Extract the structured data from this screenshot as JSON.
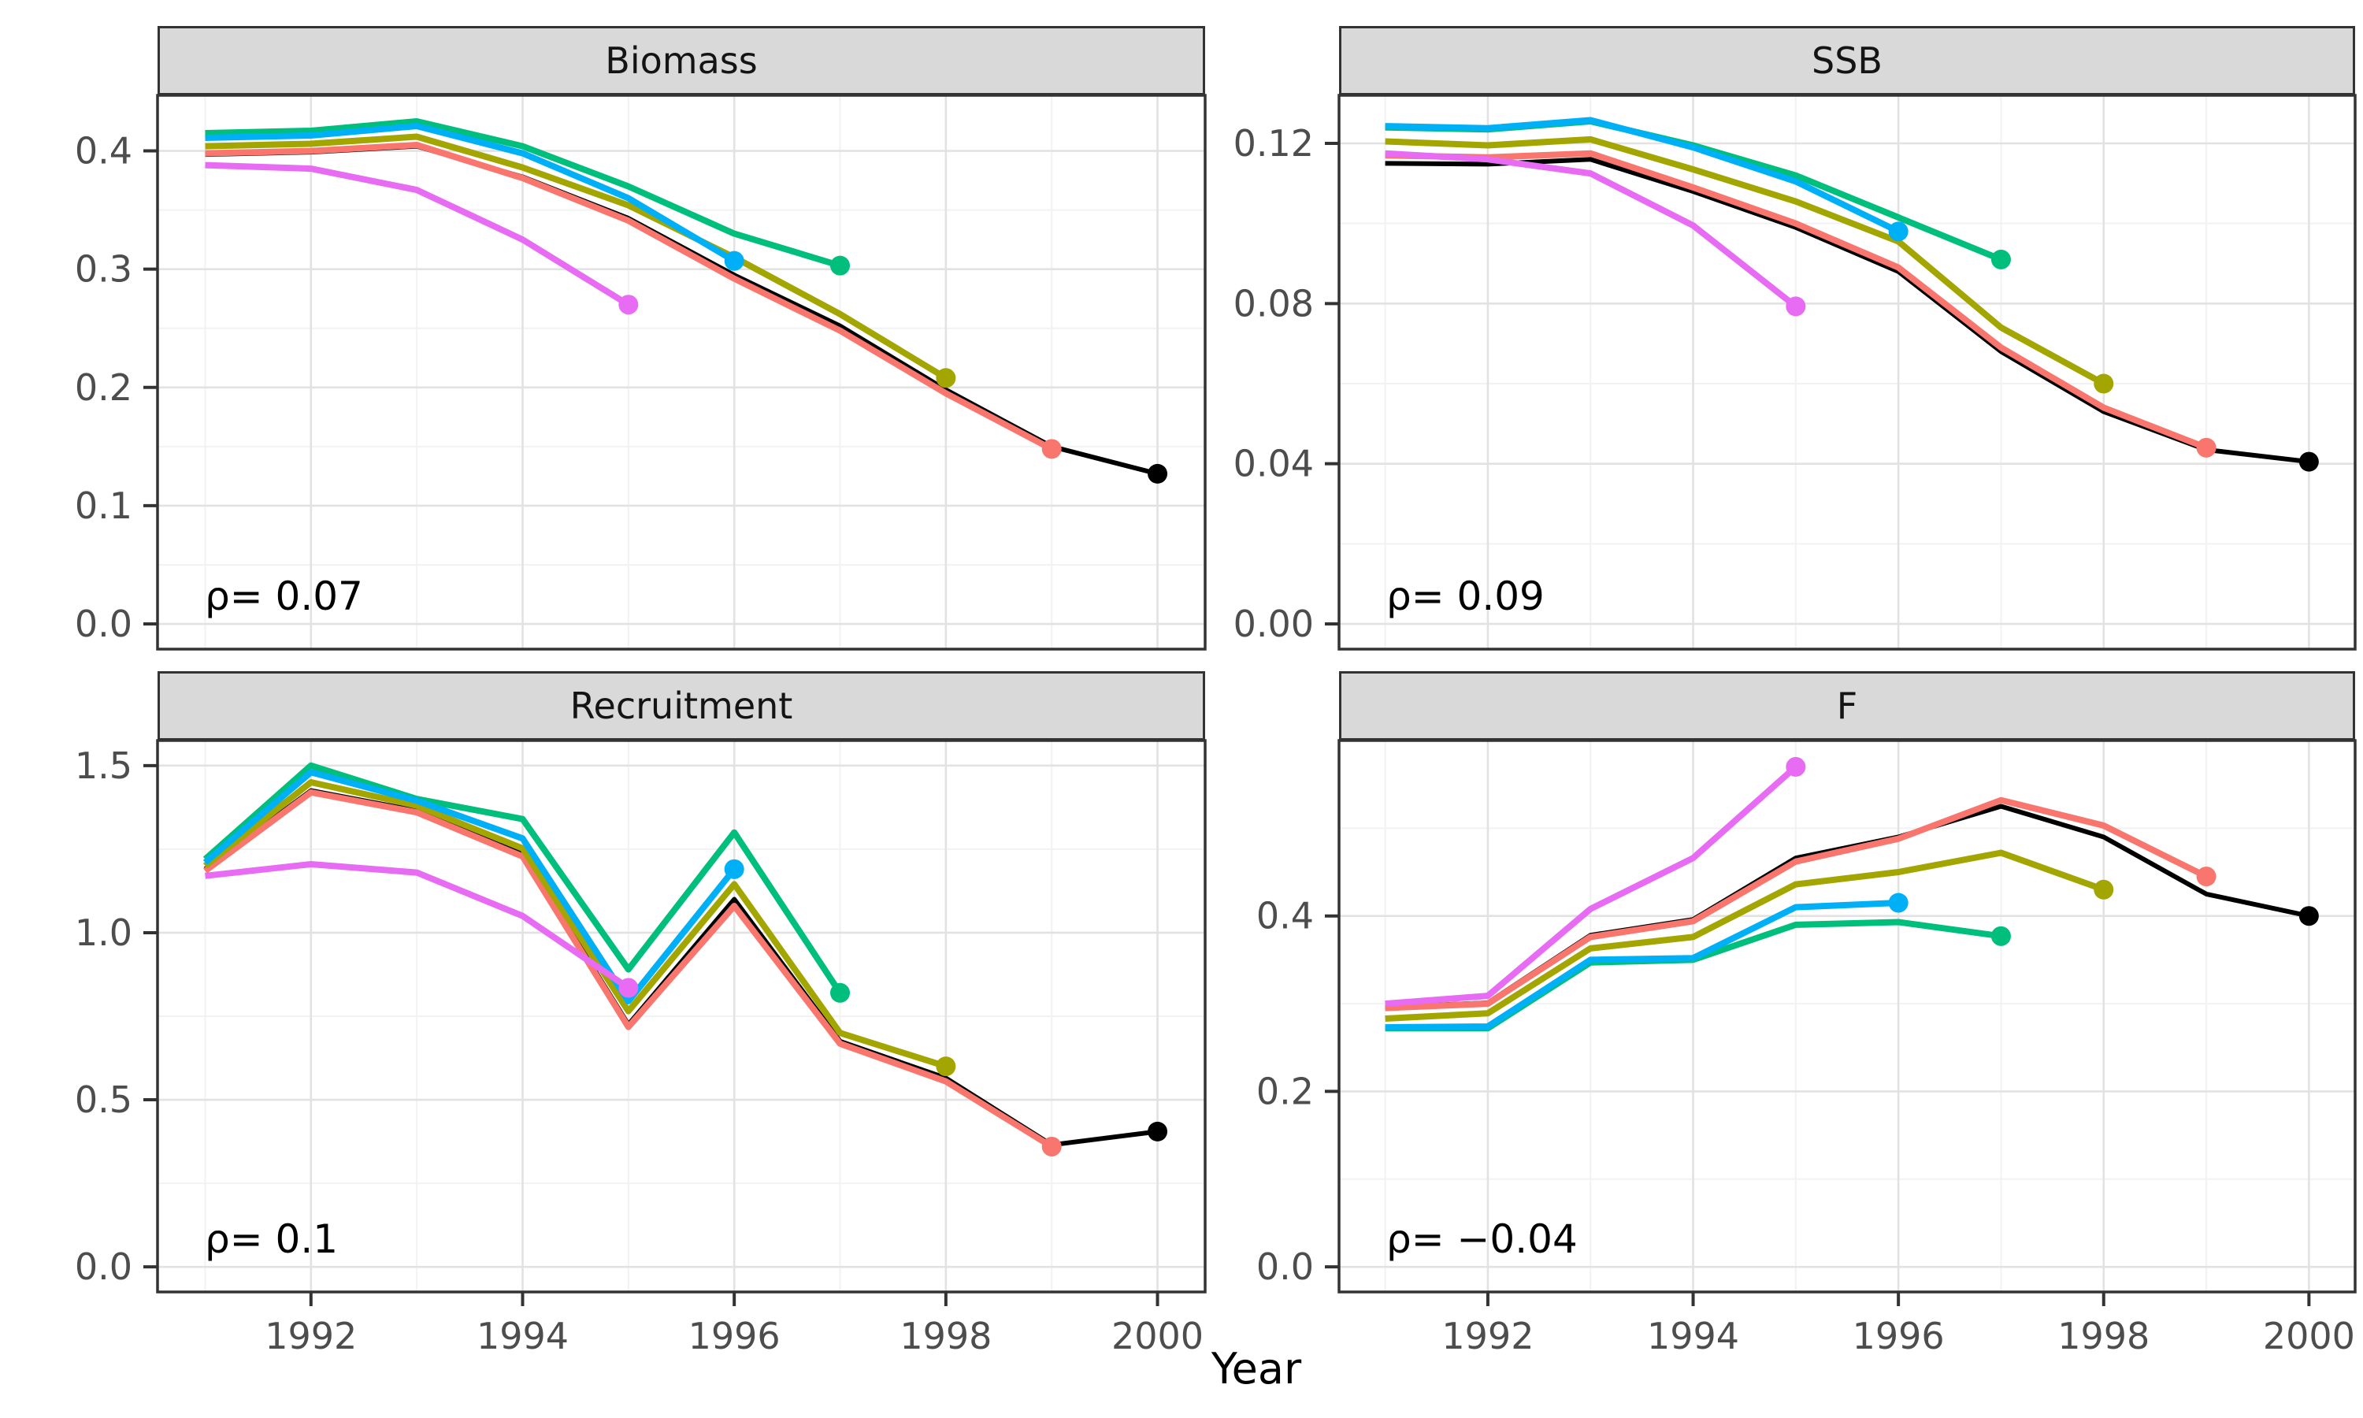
{
  "ui": {
    "x_axis_title": "Year",
    "panels": [
      {
        "title": "Biomass",
        "rho_label": "ρ= 0.07"
      },
      {
        "title": "SSB",
        "rho_label": "ρ= 0.09"
      },
      {
        "title": "Recruitment",
        "rho_label": "ρ= 0.1"
      },
      {
        "title": "F",
        "rho_label": "ρ= −0.04"
      }
    ]
  },
  "colors": {
    "base": "#000000",
    "peel_1999": "#F8766D",
    "peel_1998": "#A3A500",
    "peel_1997": "#00BF7D",
    "peel_1996": "#00B0F6",
    "peel_1995": "#E76BF3",
    "grid_major": "#E2E2E2",
    "grid_minor": "#F2F2F2",
    "strip_fill": "#D9D9D9",
    "panel_border": "#333333",
    "axis_text": "#4D4D4D"
  },
  "chart_data": [
    {
      "type": "line",
      "title": "Biomass",
      "rho": 0.07,
      "xlabel": "Year",
      "ylabel": "",
      "x_domain": [
        1990.55,
        2000.45
      ],
      "x_ticks": [
        1992,
        1994,
        1996,
        1998,
        2000
      ],
      "x_tick_labels": [
        "1992",
        "1994",
        "1996",
        "1998",
        "2000"
      ],
      "x_minor": [
        1991,
        1993,
        1995,
        1997,
        1999
      ],
      "y_domain": [
        -0.0213,
        0.447
      ],
      "y_ticks": [
        0.0,
        0.1,
        0.2,
        0.3,
        0.4
      ],
      "y_tick_labels": [
        "0.0",
        "0.1",
        "0.2",
        "0.3",
        "0.4"
      ],
      "y_minor": [
        0.05,
        0.15,
        0.25,
        0.35
      ],
      "series": [
        {
          "name": "base-2000",
          "color": "#000000",
          "width": 6,
          "start_year": 1991,
          "end_year": 2000,
          "values": [
            0.397,
            0.399,
            0.404,
            0.378,
            0.343,
            0.295,
            0.252,
            0.198,
            0.15,
            0.127
          ]
        },
        {
          "name": "peel-1999",
          "color": "#F8766D",
          "width": 8,
          "start_year": 1991,
          "end_year": 1999,
          "values": [
            0.398,
            0.4,
            0.405,
            0.377,
            0.341,
            0.292,
            0.248,
            0.195,
            0.148
          ]
        },
        {
          "name": "peel-1998",
          "color": "#A3A500",
          "width": 8,
          "start_year": 1991,
          "end_year": 1998,
          "values": [
            0.404,
            0.406,
            0.412,
            0.386,
            0.354,
            0.31,
            0.262,
            0.208
          ]
        },
        {
          "name": "peel-1997",
          "color": "#00BF7D",
          "width": 8,
          "start_year": 1991,
          "end_year": 1997,
          "values": [
            0.415,
            0.417,
            0.425,
            0.404,
            0.37,
            0.33,
            0.303
          ]
        },
        {
          "name": "peel-1996",
          "color": "#00B0F6",
          "width": 8,
          "start_year": 1991,
          "end_year": 1996,
          "values": [
            0.411,
            0.413,
            0.421,
            0.398,
            0.36,
            0.307
          ]
        },
        {
          "name": "peel-1995",
          "color": "#E76BF3",
          "width": 8,
          "start_year": 1991,
          "end_year": 1995,
          "values": [
            0.388,
            0.385,
            0.367,
            0.325,
            0.27
          ]
        }
      ]
    },
    {
      "type": "line",
      "title": "SSB",
      "rho": 0.09,
      "xlabel": "Year",
      "ylabel": "",
      "x_domain": [
        1990.55,
        2000.45
      ],
      "x_ticks": [
        1992,
        1994,
        1996,
        1998,
        2000
      ],
      "x_tick_labels": [
        "1992",
        "1994",
        "1996",
        "1998",
        "2000"
      ],
      "x_minor": [
        1991,
        1993,
        1995,
        1997,
        1999
      ],
      "y_domain": [
        -0.0063,
        0.132
      ],
      "y_ticks": [
        0.0,
        0.04,
        0.08,
        0.12
      ],
      "y_tick_labels": [
        "0.00",
        "0.04",
        "0.08",
        "0.12"
      ],
      "y_minor": [
        0.02,
        0.06,
        0.1
      ],
      "series": [
        {
          "name": "base-2000",
          "color": "#000000",
          "width": 6,
          "start_year": 1991,
          "end_year": 2000,
          "values": [
            0.115,
            0.1148,
            0.116,
            0.108,
            0.099,
            0.088,
            0.068,
            0.053,
            0.0435,
            0.0405
          ]
        },
        {
          "name": "peel-1999",
          "color": "#F8766D",
          "width": 8,
          "start_year": 1991,
          "end_year": 1999,
          "values": [
            0.117,
            0.1165,
            0.1175,
            0.109,
            0.1,
            0.089,
            0.069,
            0.054,
            0.044
          ]
        },
        {
          "name": "peel-1998",
          "color": "#A3A500",
          "width": 8,
          "start_year": 1991,
          "end_year": 1998,
          "values": [
            0.1205,
            0.1195,
            0.121,
            0.1135,
            0.1055,
            0.0955,
            0.074,
            0.06
          ]
        },
        {
          "name": "peel-1997",
          "color": "#00BF7D",
          "width": 8,
          "start_year": 1991,
          "end_year": 1997,
          "values": [
            0.124,
            0.1235,
            0.1255,
            0.1195,
            0.112,
            0.1015,
            0.091
          ]
        },
        {
          "name": "peel-1996",
          "color": "#00B0F6",
          "width": 8,
          "start_year": 1991,
          "end_year": 1996,
          "values": [
            0.1243,
            0.1238,
            0.1258,
            0.119,
            0.1105,
            0.098
          ]
        },
        {
          "name": "peel-1995",
          "color": "#E76BF3",
          "width": 8,
          "start_year": 1991,
          "end_year": 1995,
          "values": [
            0.1175,
            0.116,
            0.1125,
            0.0995,
            0.0793
          ]
        }
      ]
    },
    {
      "type": "line",
      "title": "Recruitment",
      "rho": 0.1,
      "xlabel": "Year",
      "ylabel": "",
      "x_domain": [
        1990.55,
        2000.45
      ],
      "x_ticks": [
        1992,
        1994,
        1996,
        1998,
        2000
      ],
      "x_tick_labels": [
        "1992",
        "1994",
        "1996",
        "1998",
        "2000"
      ],
      "x_minor": [
        1991,
        1993,
        1995,
        1997,
        1999
      ],
      "y_domain": [
        -0.075,
        1.575
      ],
      "y_ticks": [
        0.0,
        0.5,
        1.0,
        1.5
      ],
      "y_tick_labels": [
        "0.0",
        "0.5",
        "1.0",
        "1.5"
      ],
      "y_minor": [
        0.25,
        0.75,
        1.25
      ],
      "series": [
        {
          "name": "base-2000",
          "color": "#000000",
          "width": 6,
          "start_year": 1991,
          "end_year": 2000,
          "values": [
            1.19,
            1.425,
            1.365,
            1.235,
            0.725,
            1.1,
            0.675,
            0.565,
            0.365,
            0.405
          ]
        },
        {
          "name": "peel-1999",
          "color": "#F8766D",
          "width": 8,
          "start_year": 1991,
          "end_year": 1999,
          "values": [
            1.185,
            1.42,
            1.36,
            1.228,
            0.718,
            1.08,
            0.668,
            0.555,
            0.36
          ]
        },
        {
          "name": "peel-1998",
          "color": "#A3A500",
          "width": 8,
          "start_year": 1991,
          "end_year": 1998,
          "values": [
            1.2,
            1.45,
            1.38,
            1.252,
            0.765,
            1.145,
            0.7,
            0.6
          ]
        },
        {
          "name": "peel-1997",
          "color": "#00BF7D",
          "width": 8,
          "start_year": 1991,
          "end_year": 1997,
          "values": [
            1.22,
            1.5,
            1.4,
            1.34,
            0.89,
            1.3,
            0.82
          ]
        },
        {
          "name": "peel-1996",
          "color": "#00B0F6",
          "width": 8,
          "start_year": 1991,
          "end_year": 1996,
          "values": [
            1.21,
            1.48,
            1.395,
            1.282,
            0.795,
            1.19
          ]
        },
        {
          "name": "peel-1995",
          "color": "#E76BF3",
          "width": 8,
          "start_year": 1991,
          "end_year": 1995,
          "values": [
            1.17,
            1.205,
            1.18,
            1.05,
            0.835
          ]
        }
      ]
    },
    {
      "type": "line",
      "title": "F",
      "rho": -0.04,
      "xlabel": "Year",
      "ylabel": "",
      "x_domain": [
        1990.55,
        2000.45
      ],
      "x_ticks": [
        1992,
        1994,
        1996,
        1998,
        2000
      ],
      "x_tick_labels": [
        "1992",
        "1994",
        "1996",
        "1998",
        "2000"
      ],
      "x_minor": [
        1991,
        1993,
        1995,
        1997,
        1999
      ],
      "y_domain": [
        -0.0286,
        0.6
      ],
      "y_ticks": [
        0.0,
        0.2,
        0.4
      ],
      "y_tick_labels": [
        "0.0",
        "0.2",
        "0.4"
      ],
      "y_minor": [
        0.1,
        0.3,
        0.5
      ],
      "series": [
        {
          "name": "base-2000",
          "color": "#000000",
          "width": 6,
          "start_year": 1991,
          "end_year": 2000,
          "values": [
            0.296,
            0.301,
            0.378,
            0.396,
            0.466,
            0.49,
            0.525,
            0.49,
            0.425,
            0.4
          ]
        },
        {
          "name": "peel-1999",
          "color": "#F8766D",
          "width": 8,
          "start_year": 1991,
          "end_year": 1999,
          "values": [
            0.295,
            0.3,
            0.376,
            0.394,
            0.462,
            0.488,
            0.532,
            0.503,
            0.445
          ]
        },
        {
          "name": "peel-1998",
          "color": "#A3A500",
          "width": 8,
          "start_year": 1991,
          "end_year": 1998,
          "values": [
            0.283,
            0.289,
            0.363,
            0.376,
            0.436,
            0.45,
            0.472,
            0.43
          ]
        },
        {
          "name": "peel-1997",
          "color": "#00BF7D",
          "width": 8,
          "start_year": 1991,
          "end_year": 1997,
          "values": [
            0.272,
            0.272,
            0.347,
            0.35,
            0.39,
            0.393,
            0.377
          ]
        },
        {
          "name": "peel-1996",
          "color": "#00B0F6",
          "width": 8,
          "start_year": 1991,
          "end_year": 1996,
          "values": [
            0.273,
            0.274,
            0.35,
            0.352,
            0.41,
            0.415
          ]
        },
        {
          "name": "peel-1995",
          "color": "#E76BF3",
          "width": 8,
          "start_year": 1991,
          "end_year": 1995,
          "values": [
            0.3,
            0.309,
            0.408,
            0.466,
            0.57
          ]
        }
      ]
    }
  ]
}
